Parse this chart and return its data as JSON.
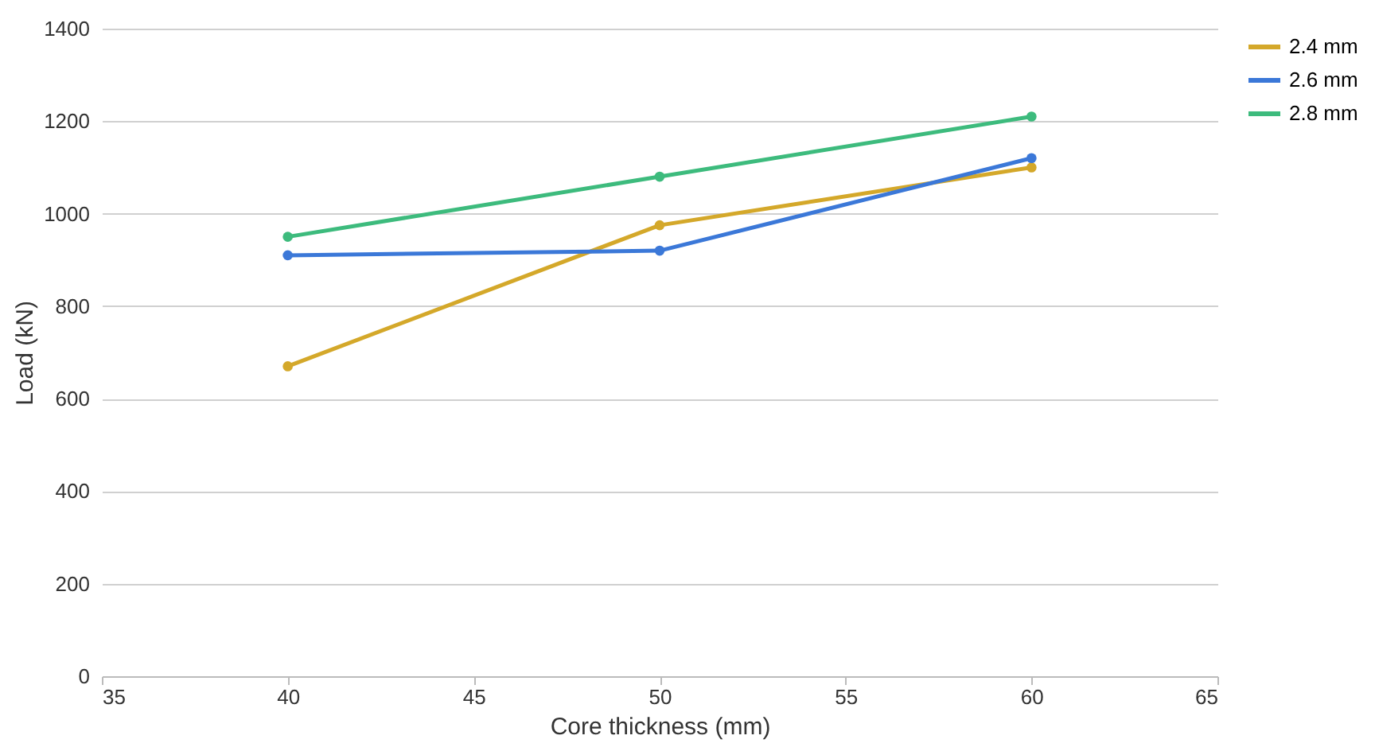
{
  "chart_data": {
    "type": "line",
    "xlabel": "Core thickness (mm)",
    "ylabel": "Load (kN)",
    "x": [
      40,
      50,
      60
    ],
    "series": [
      {
        "name": "2.4 mm",
        "color": "#d4a82a",
        "values": [
          670,
          975,
          1100
        ]
      },
      {
        "name": "2.6 mm",
        "color": "#3b78d8",
        "values": [
          910,
          920,
          1120
        ]
      },
      {
        "name": "2.8 mm",
        "color": "#3dbb7d",
        "values": [
          950,
          1080,
          1210
        ]
      }
    ],
    "xlim": [
      35,
      65
    ],
    "xticks": [
      35,
      40,
      45,
      50,
      55,
      60,
      65
    ],
    "ylim": [
      0,
      1400
    ],
    "yticks": [
      0,
      200,
      400,
      600,
      800,
      1000,
      1200,
      1400
    ],
    "grid": "y",
    "legend": "right",
    "marker": "circle",
    "line_style": "solid"
  }
}
